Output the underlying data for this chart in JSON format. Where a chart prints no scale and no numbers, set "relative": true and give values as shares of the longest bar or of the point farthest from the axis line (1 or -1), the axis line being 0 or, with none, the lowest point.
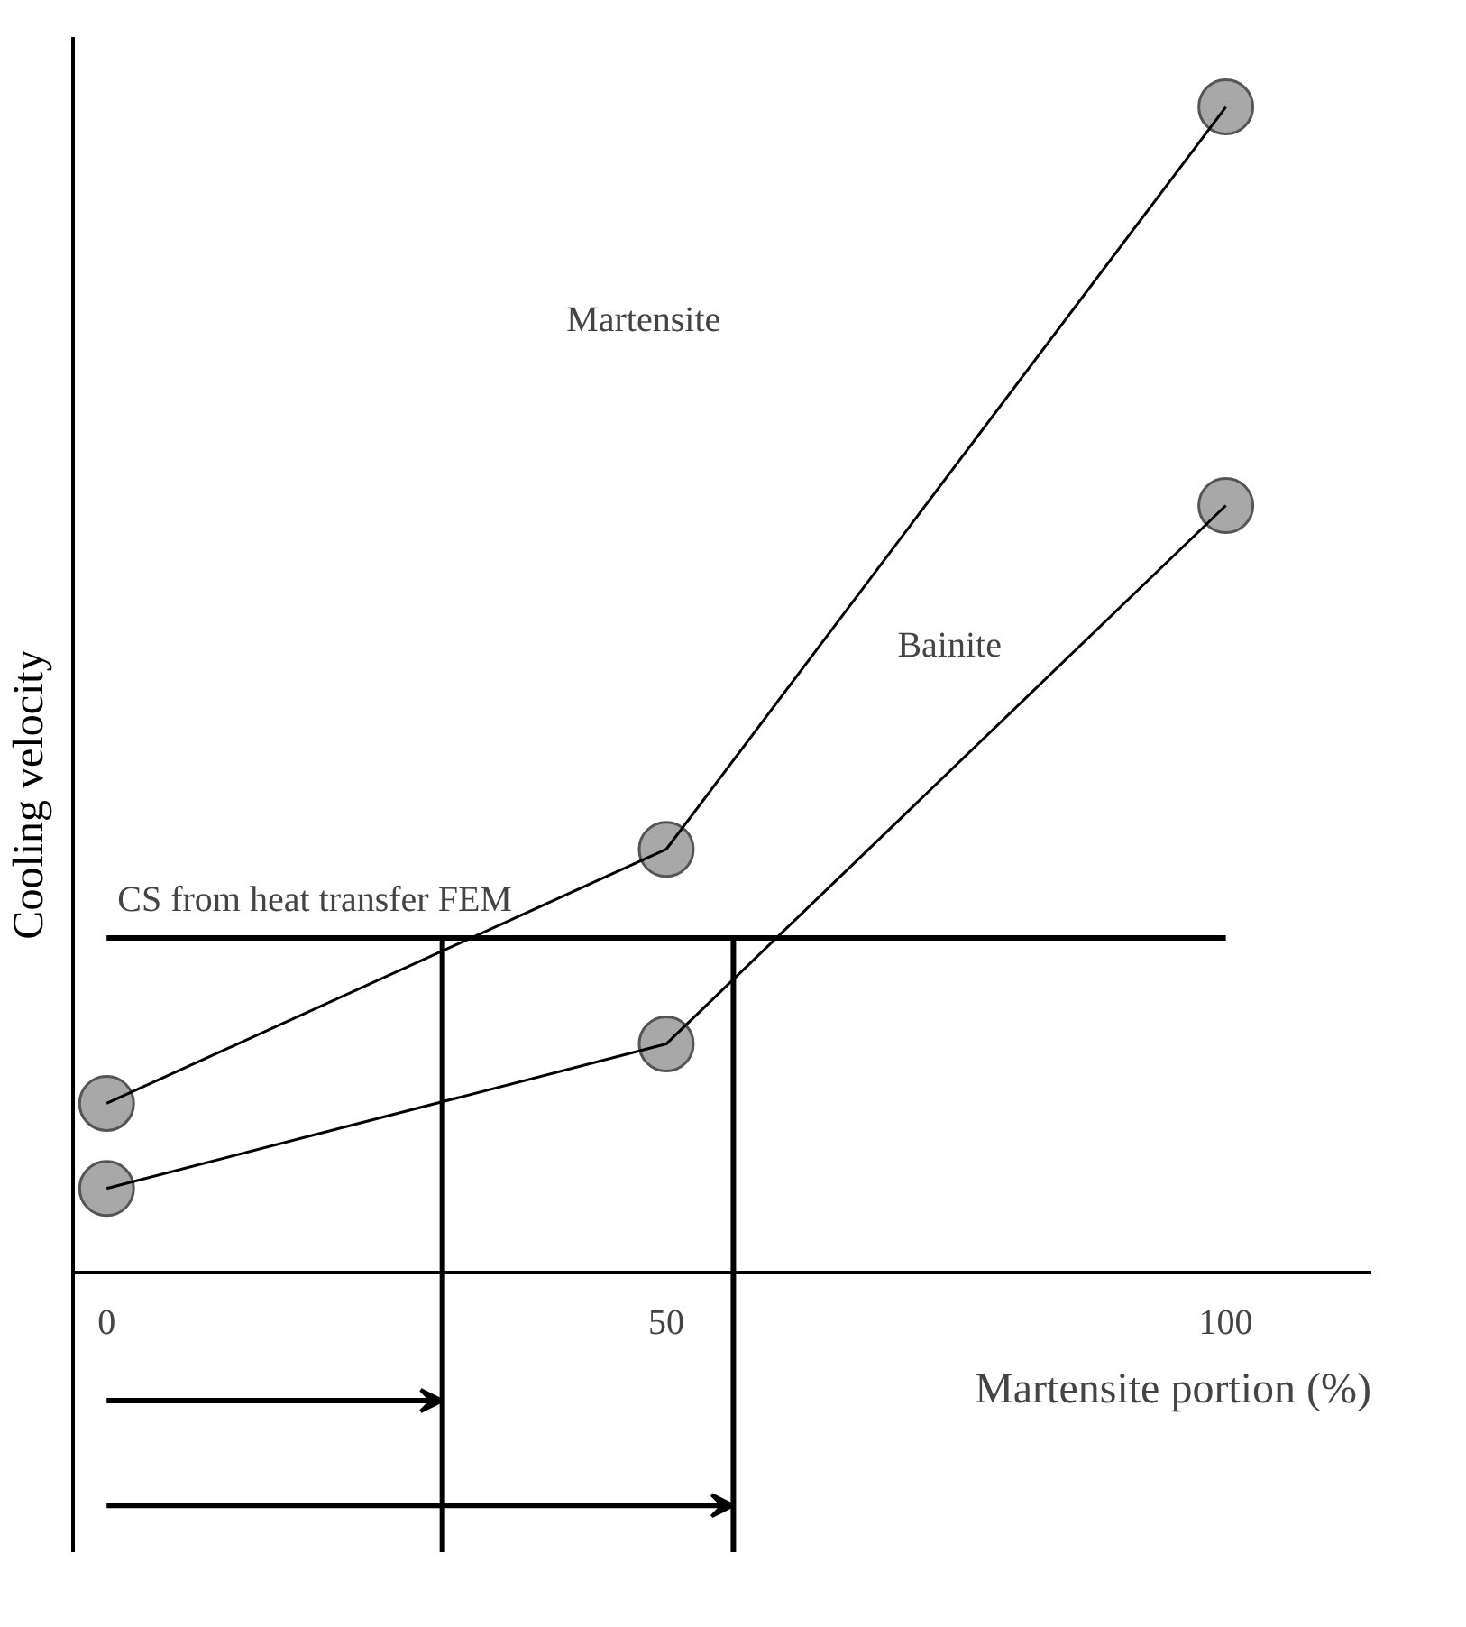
{
  "chart_data": {
    "type": "line",
    "relative": true,
    "xlabel": "Martensite portion (%)",
    "ylabel": "Cooling velocity",
    "x": [
      0,
      50,
      100
    ],
    "xlim": [
      -3,
      113
    ],
    "xticks": [
      0,
      50,
      100
    ],
    "grid": false,
    "marker": "circle",
    "line_style": "solid",
    "series": [
      {
        "color": "#000000",
        "values": [
          0.145,
          0.363,
          1
        ]
      },
      {
        "color": "#000000",
        "values": [
          0.072,
          0.196,
          0.658
        ]
      }
    ],
    "ref_lines": [
      {
        "axis": "y",
        "value": 0.287,
        "label": "CS from heat transfer FEM"
      },
      {
        "axis": "x",
        "value": 30
      },
      {
        "axis": "x",
        "value": 56
      }
    ],
    "annotations": [
      "Martensite",
      "Bainite"
    ]
  }
}
